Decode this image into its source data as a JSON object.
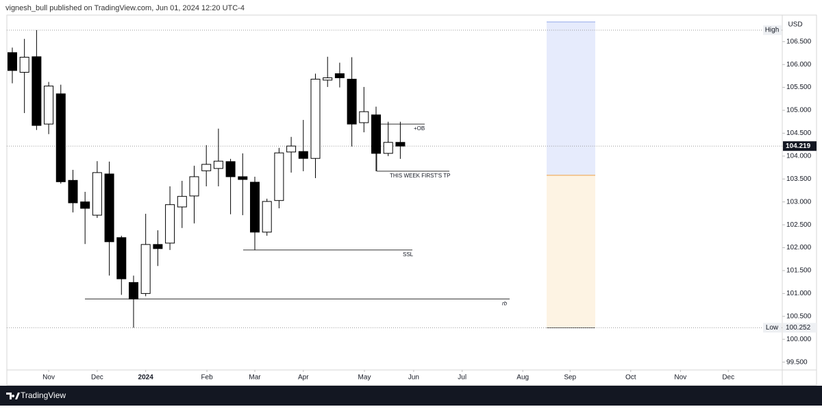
{
  "chart_data": {
    "type": "candlestick",
    "header": "vignesh_bull published on TradingView.com, Jun 01, 2024 12:20 UTC-4",
    "footer": "TradingView",
    "currency": "USD",
    "series": {
      "open": [
        106.26,
        105.83,
        106.17,
        104.7,
        105.36,
        103.47,
        103.0,
        102.71,
        103.61,
        102.22,
        101.24,
        101.0,
        102.07,
        102.1,
        102.89,
        103.13,
        103.68,
        103.73,
        103.88,
        103.55,
        103.43,
        102.34,
        103.03,
        104.09,
        104.1,
        103.95,
        105.66,
        105.8,
        105.68,
        104.73,
        104.9,
        104.06,
        104.3
      ],
      "high": [
        106.37,
        106.56,
        106.75,
        105.62,
        105.56,
        103.7,
        103.22,
        103.89,
        103.88,
        102.26,
        101.39,
        102.74,
        102.38,
        103.34,
        103.46,
        103.79,
        104.24,
        104.6,
        103.94,
        104.06,
        103.55,
        103.07,
        104.18,
        104.42,
        104.79,
        105.8,
        106.17,
        106.04,
        106.16,
        105.51,
        105.08,
        104.75,
        104.75
      ],
      "low": [
        105.59,
        104.94,
        104.57,
        104.48,
        103.4,
        102.77,
        102.08,
        102.65,
        101.39,
        100.97,
        100.252,
        100.94,
        101.6,
        101.95,
        102.43,
        102.53,
        103.34,
        103.34,
        102.73,
        102.71,
        101.95,
        102.26,
        102.86,
        103.64,
        103.67,
        103.52,
        105.51,
        105.5,
        104.21,
        104.52,
        103.67,
        104.0,
        103.94
      ],
      "close": [
        105.87,
        106.16,
        104.67,
        105.53,
        103.44,
        102.98,
        102.86,
        103.64,
        102.13,
        101.32,
        100.88,
        102.07,
        101.98,
        102.94,
        103.12,
        103.55,
        103.82,
        103.89,
        103.55,
        103.49,
        102.34,
        103.01,
        104.07,
        104.22,
        103.95,
        105.68,
        105.71,
        105.71,
        104.7,
        104.97,
        104.06,
        104.3,
        104.219
      ]
    },
    "ylim": [
      99.33,
      107.08
    ],
    "yticks": [
      {
        "value": 99.5,
        "label": "99.500"
      },
      {
        "value": 100,
        "label": "100.000"
      },
      {
        "value": 100.5,
        "label": "100.500"
      },
      {
        "value": 101,
        "label": "101.000"
      },
      {
        "value": 101.5,
        "label": "101.500"
      },
      {
        "value": 102,
        "label": "102.000"
      },
      {
        "value": 102.5,
        "label": "102.500"
      },
      {
        "value": 103,
        "label": "103.000"
      },
      {
        "value": 103.5,
        "label": "103.500"
      },
      {
        "value": 104,
        "label": "104.000"
      },
      {
        "value": 104.5,
        "label": "104.500"
      },
      {
        "value": 105,
        "label": "105.000"
      },
      {
        "value": 105.5,
        "label": "105.500"
      },
      {
        "value": 106,
        "label": "106.000"
      },
      {
        "value": 106.5,
        "label": "106.500"
      }
    ],
    "xlim": [
      -0.45,
      63.5
    ],
    "xticks": [
      {
        "value": 3,
        "label": "Nov"
      },
      {
        "value": 7,
        "label": "Dec"
      },
      {
        "value": 11,
        "label": "2024"
      },
      {
        "value": 16.05,
        "label": "Feb"
      },
      {
        "value": 20,
        "label": "Mar"
      },
      {
        "value": 24,
        "label": "Apr"
      },
      {
        "value": 29.04,
        "label": "May"
      },
      {
        "value": 33.1,
        "label": "Jun"
      },
      {
        "value": 37.1,
        "label": "Jul"
      },
      {
        "value": 42.1,
        "label": "Aug"
      },
      {
        "value": 46,
        "label": "Sep"
      },
      {
        "value": 51,
        "label": "Oct"
      },
      {
        "value": 55.1,
        "label": "Nov"
      },
      {
        "value": 59.05,
        "label": "Dec"
      }
    ],
    "last_price": 104.219,
    "high_marker": {
      "label": "High",
      "value": 106.75
    },
    "low_marker": {
      "label": "Low",
      "value": 100.252
    },
    "position": {
      "top": 106.93,
      "entry": 103.58,
      "bottom": 100.25
    },
    "annotations": [
      {
        "text": "+OB",
        "level": 104.7
      },
      {
        "text": "THIS WEEK FIRST'S TP",
        "level": 103.67
      },
      {
        "text": "SSL",
        "level": 101.95
      },
      {
        "text": "rb",
        "level": 100.88
      }
    ]
  }
}
